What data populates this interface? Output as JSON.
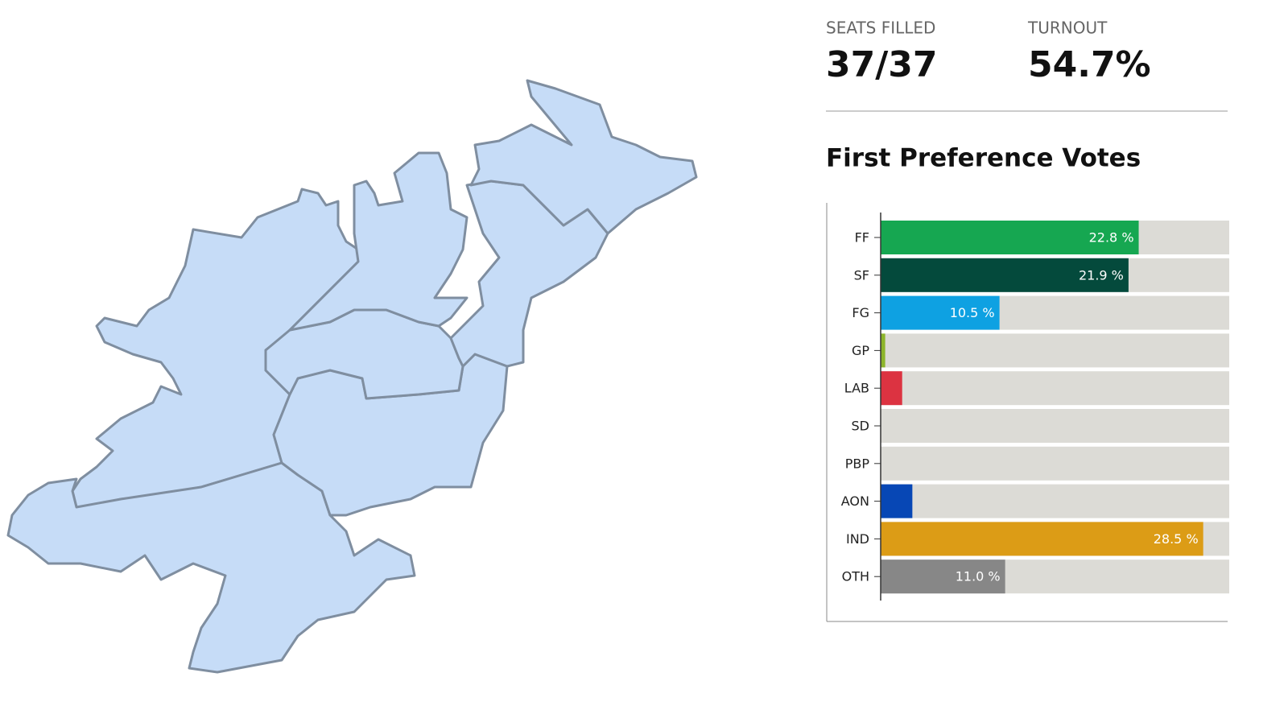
{
  "stats": [
    {
      "label": "SEATS FILLED",
      "value": "37/37"
    },
    {
      "label": "TURNOUT",
      "value": "54.7%"
    }
  ],
  "chart_data": {
    "type": "bar",
    "orientation": "horizontal",
    "title": "First Preference Votes",
    "categories": [
      "FF",
      "SF",
      "FG",
      "GP",
      "LAB",
      "SD",
      "PBP",
      "AON",
      "IND",
      "OTH"
    ],
    "values": [
      22.8,
      21.9,
      10.5,
      0.4,
      1.9,
      0,
      0,
      2.8,
      28.5,
      11.0
    ],
    "value_labels": [
      "22.8 %",
      "21.9 %",
      "10.5 %",
      null,
      null,
      null,
      null,
      null,
      "28.5 %",
      "11.0 %"
    ],
    "colors": [
      "#16a751",
      "#044a3c",
      "#0ea1e2",
      "#8db52b",
      "#dc3341",
      null,
      null,
      "#0747b5",
      "#dc9c16",
      "#878787"
    ],
    "track_color": "#dcdbd6",
    "xlim": [
      0,
      30.8
    ]
  }
}
